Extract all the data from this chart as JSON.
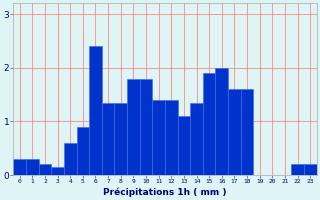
{
  "values": [
    0.3,
    0.3,
    0.2,
    0.15,
    0.6,
    0.9,
    2.4,
    1.35,
    1.35,
    1.8,
    1.8,
    1.4,
    1.4,
    1.1,
    1.35,
    1.9,
    2.0,
    1.6,
    1.6,
    0.0,
    0.0,
    0.0,
    0.2,
    0.2
  ],
  "bar_color": "#0033cc",
  "bar_edge_color": "#4466ee",
  "bg_color": "#dff4f4",
  "grid_color": "#ff8888",
  "xlabel": "Précipitations 1h ( mm )",
  "xlabel_color": "#000077",
  "tick_label_color": "#000077",
  "yticks": [
    0,
    1,
    2,
    3
  ],
  "ylim": [
    0,
    3.2
  ],
  "title": ""
}
